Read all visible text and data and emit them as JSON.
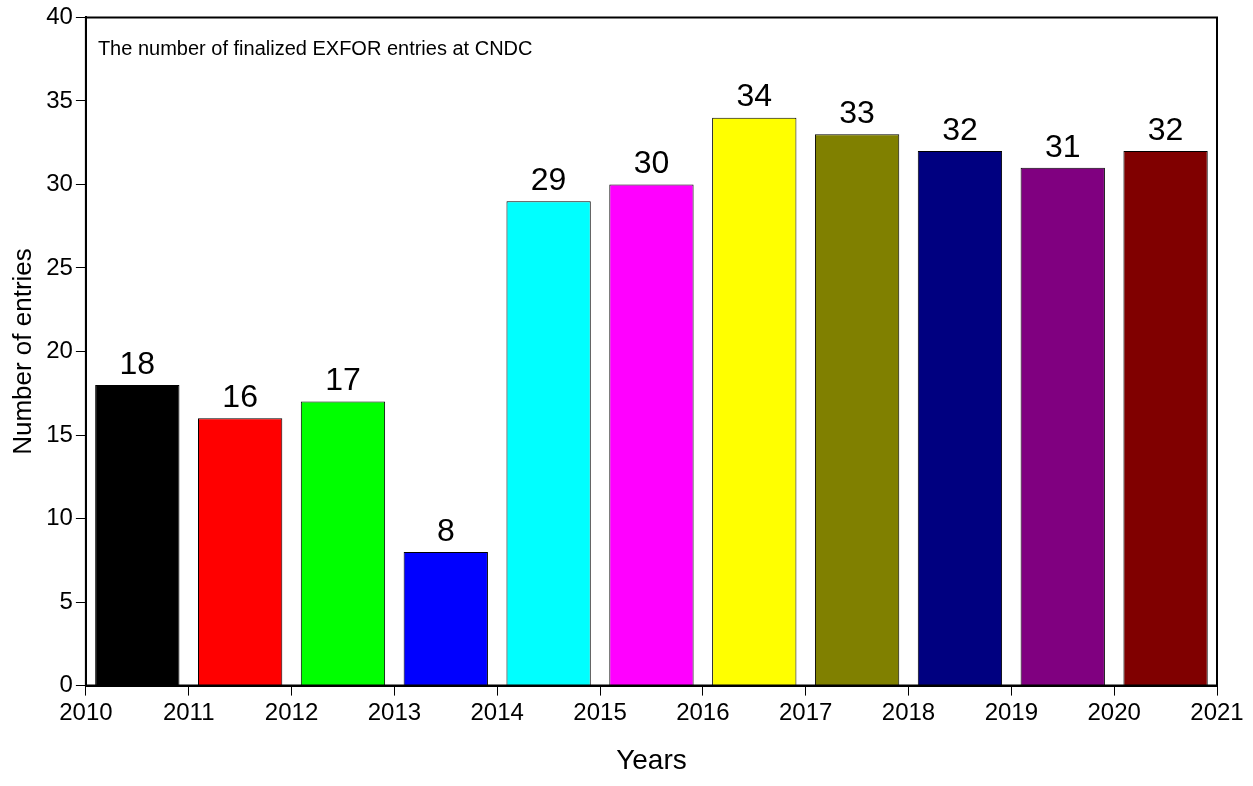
{
  "chart_data": {
    "type": "bar",
    "xlabel": "Years",
    "ylabel": "Number of entries",
    "annotations": [
      "The number of finalized EXFOR entries at CNDC"
    ],
    "x": [
      2010.5,
      2011.5,
      2012.5,
      2013.5,
      2014.5,
      2015.5,
      2016.5,
      2017.5,
      2018.5,
      2019.5,
      2020.5
    ],
    "values": [
      18,
      16,
      17,
      8,
      29,
      30,
      34,
      33,
      32,
      31,
      32
    ],
    "colors": [
      "#000000",
      "#ff0000",
      "#00ff00",
      "#0000ff",
      "#00ffff",
      "#ff00ff",
      "#ffff00",
      "#808000",
      "#000080",
      "#800080",
      "#800000"
    ],
    "xlim": [
      2010,
      2021
    ],
    "xticks": [
      2010,
      2011,
      2012,
      2013,
      2014,
      2015,
      2016,
      2017,
      2018,
      2019,
      2020,
      2021
    ],
    "ylim": [
      0,
      40
    ],
    "yticks": [
      0,
      5,
      10,
      15,
      20,
      25,
      30,
      35,
      40
    ],
    "grid": false,
    "legend": false,
    "data_labels": true
  }
}
